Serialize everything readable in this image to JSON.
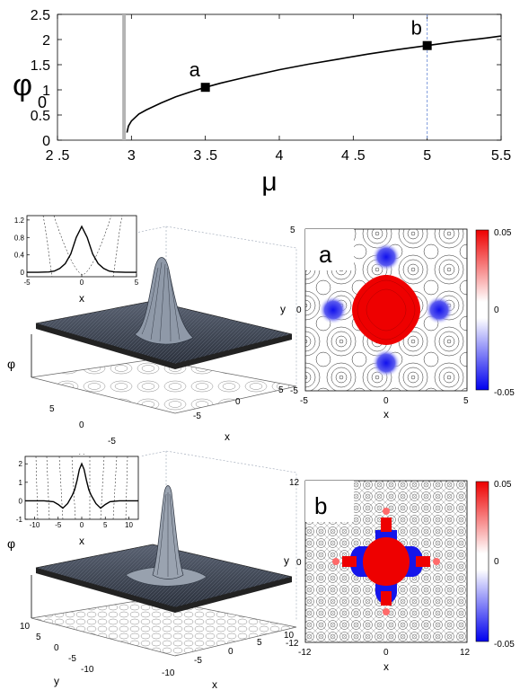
{
  "chart_data": [
    {
      "type": "line",
      "title": "",
      "xlabel": "μ",
      "ylabel": "φ",
      "ylabel_sub": "0",
      "xlim": [
        2.5,
        5.5
      ],
      "ylim": [
        0,
        2.5
      ],
      "xticks": [
        2.5,
        3,
        3.5,
        4,
        4.5,
        5,
        5.5
      ],
      "xtick_labels": [
        "2 .5",
        "3",
        "3 .5",
        "4",
        "4 .5",
        "5",
        "5.5"
      ],
      "yticks": [
        0,
        0.5,
        1,
        1.5,
        2,
        2.5
      ],
      "ytick_labels": [
        "0",
        "0.5",
        "1",
        "1.5",
        "2",
        "2.5"
      ],
      "threshold_x": 2.95,
      "threshold_color": "#b4b4b4",
      "dashed_x": 5.0,
      "dashed_color": "#6f8fd8",
      "curve": {
        "x": [
          2.97,
          2.98,
          3.0,
          3.05,
          3.1,
          3.2,
          3.3,
          3.4,
          3.5,
          3.6,
          3.8,
          4.0,
          4.2,
          4.4,
          4.6,
          4.8,
          5.0,
          5.2,
          5.4,
          5.5
        ],
        "y": [
          0.15,
          0.28,
          0.38,
          0.52,
          0.6,
          0.74,
          0.86,
          0.96,
          1.05,
          1.13,
          1.27,
          1.4,
          1.51,
          1.61,
          1.71,
          1.8,
          1.88,
          1.96,
          2.03,
          2.07
        ]
      },
      "markers": [
        {
          "label": "a",
          "x": 3.5,
          "y": 1.05
        },
        {
          "label": "b",
          "x": 5.0,
          "y": 1.88
        }
      ]
    },
    {
      "type": "line",
      "panel": "a-inset",
      "xlabel": "x",
      "xlim": [
        -5,
        5
      ],
      "ylim": [
        -0.1,
        1.3
      ],
      "xticks": [
        -5,
        0,
        5
      ],
      "xtick_labels": [
        "-5",
        "0",
        "5"
      ],
      "yticks": [
        0,
        0.4,
        0.8,
        1.2
      ],
      "ytick_labels": [
        "0",
        "0.4",
        "0.8",
        "1.2"
      ],
      "solid": {
        "x": [
          -5,
          -4,
          -3,
          -2.5,
          -2,
          -1.5,
          -1,
          -0.5,
          0,
          0.5,
          1,
          1.5,
          2,
          2.5,
          3,
          4,
          5
        ],
        "y": [
          0.0,
          0.0,
          0.01,
          0.03,
          0.09,
          0.2,
          0.42,
          0.8,
          1.05,
          0.8,
          0.42,
          0.2,
          0.09,
          0.03,
          0.01,
          0.0,
          0.0
        ]
      }
    },
    {
      "type": "heatmap",
      "panel": "a",
      "label": "a",
      "xlabel": "x",
      "ylabel": "y",
      "xlim": [
        -5,
        5
      ],
      "ylim": [
        -5,
        5
      ],
      "xtick_labels": [
        "-5",
        "0",
        "5"
      ],
      "ytick_labels": [
        "-5",
        "0",
        "5"
      ],
      "colorbar_ticks": [
        "0.05",
        "0",
        "-0.05"
      ],
      "colors": {
        "positive": "#ee0000",
        "negative": "#1a1aee",
        "mid": "#ffffff"
      }
    },
    {
      "type": "line",
      "panel": "b-inset",
      "xlabel": "x",
      "xlim": [
        -12,
        12
      ],
      "ylim": [
        -1,
        2.4
      ],
      "xticks": [
        -10,
        -5,
        0,
        5,
        10
      ],
      "xtick_labels": [
        "-10",
        "-5",
        "0",
        "5",
        "10"
      ],
      "yticks": [
        -1,
        0,
        1,
        2
      ],
      "ytick_labels": [
        "-1",
        "0",
        "1",
        "2"
      ],
      "solid": {
        "x": [
          -12,
          -8,
          -6,
          -5,
          -4,
          -3,
          -2,
          -1.5,
          -1,
          -0.5,
          0,
          0.5,
          1,
          1.5,
          2,
          3,
          4,
          5,
          6,
          8,
          12
        ],
        "y": [
          0.0,
          0.0,
          -0.05,
          -0.2,
          -0.4,
          -0.15,
          0.3,
          0.6,
          1.1,
          1.7,
          2.0,
          1.7,
          1.1,
          0.6,
          0.3,
          -0.15,
          -0.4,
          -0.2,
          -0.05,
          0.0,
          0.0
        ]
      }
    },
    {
      "type": "heatmap",
      "panel": "b",
      "label": "b",
      "xlabel": "x",
      "ylabel": "y",
      "xlim": [
        -12,
        12
      ],
      "ylim": [
        -12,
        12
      ],
      "xtick_labels": [
        "-12",
        "0",
        "12"
      ],
      "ytick_labels": [
        "-12",
        "0",
        "12"
      ],
      "colorbar_ticks": [
        "0.05",
        "0",
        "-0.05"
      ],
      "colors": {
        "positive": "#ee0000",
        "negative": "#1a1aee",
        "mid": "#ffffff"
      }
    }
  ],
  "surface_a": {
    "zlabel": "φ",
    "xlabel": "x",
    "ylabel": "y",
    "x_ticks": [
      "5",
      "0",
      "-5"
    ],
    "y_ticks": [
      "5",
      "0",
      "-5"
    ]
  },
  "surface_b": {
    "zlabel": "φ",
    "xlabel": "x",
    "ylabel": "y",
    "x_ticks": [
      "10",
      "5",
      "0",
      "-5",
      "-10"
    ],
    "y_ticks": [
      "10",
      "5",
      "0",
      "-5",
      "-10"
    ]
  }
}
